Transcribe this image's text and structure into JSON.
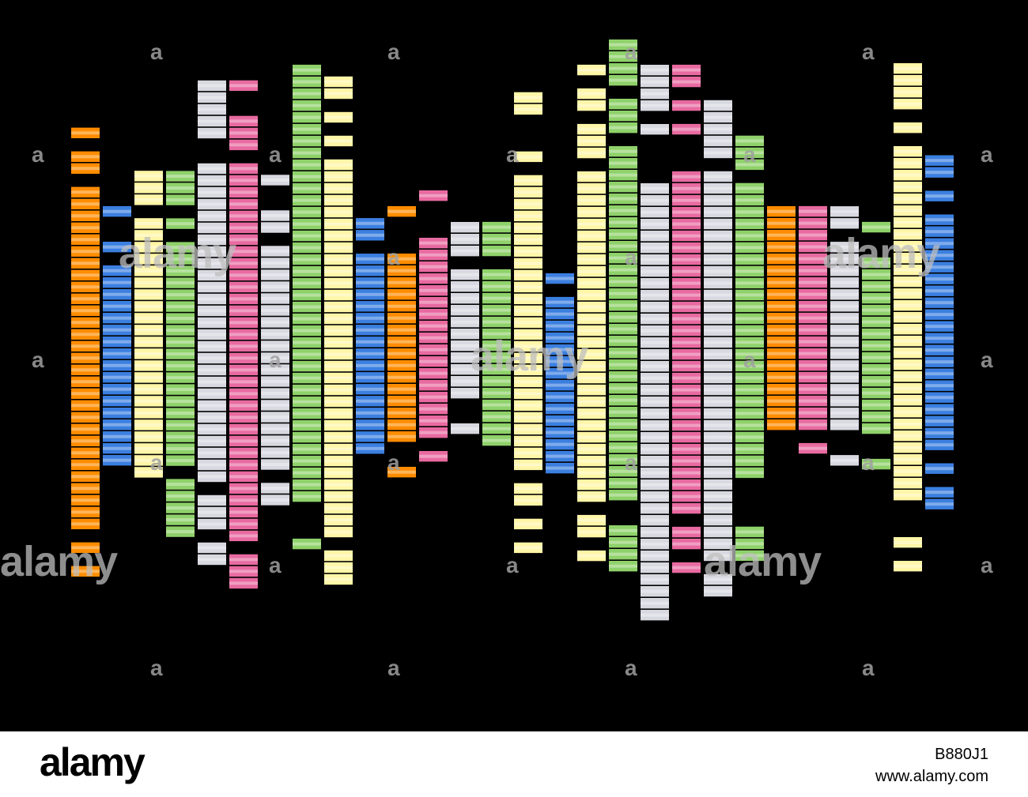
{
  "image": {
    "subject": "graphic equalizer",
    "columns": [
      {
        "color_name": "orange",
        "level": 0.8
      },
      {
        "color_name": "blue",
        "level": 0.5
      },
      {
        "color_name": "yellow",
        "level": 0.6
      },
      {
        "color_name": "green",
        "level": 0.7
      },
      {
        "color_name": "silver",
        "level": 0.9
      },
      {
        "color_name": "pink",
        "level": 0.85
      },
      {
        "color_name": "silver",
        "level": 0.65
      },
      {
        "color_name": "green",
        "level": 0.95
      },
      {
        "color_name": "yellow",
        "level": 0.9
      },
      {
        "color_name": "blue",
        "level": 0.55
      },
      {
        "color_name": "orange",
        "level": 0.5
      },
      {
        "color_name": "pink",
        "level": 0.5
      },
      {
        "color_name": "silver",
        "level": 0.5
      },
      {
        "color_name": "green",
        "level": 0.45
      },
      {
        "color_name": "yellow",
        "level": 0.85
      },
      {
        "color_name": "blue",
        "level": 0.45
      },
      {
        "color_name": "yellow",
        "level": 0.95
      },
      {
        "color_name": "green",
        "level": 0.98
      },
      {
        "color_name": "silver",
        "level": 1.0
      },
      {
        "color_name": "pink",
        "level": 0.95
      },
      {
        "color_name": "silver",
        "level": 0.9
      },
      {
        "color_name": "green",
        "level": 0.85
      },
      {
        "color_name": "orange",
        "level": 0.5
      },
      {
        "color_name": "pink",
        "level": 0.45
      },
      {
        "color_name": "silver",
        "level": 0.55
      },
      {
        "color_name": "green",
        "level": 0.45
      },
      {
        "color_name": "yellow",
        "level": 0.98
      },
      {
        "color_name": "blue",
        "level": 0.75
      }
    ],
    "palette": {
      "orange": "#ff8c00",
      "blue": "#3b7fe0",
      "yellow": "#fff6a8",
      "green": "#8fd16a",
      "silver": "#d8d8e0",
      "pink": "#e86aa0"
    }
  },
  "watermark": {
    "small_mark": "a",
    "large_mark": "alamy"
  },
  "footer": {
    "logo": "alamy",
    "image_id": "B880J1",
    "url": "www.alamy.com"
  }
}
